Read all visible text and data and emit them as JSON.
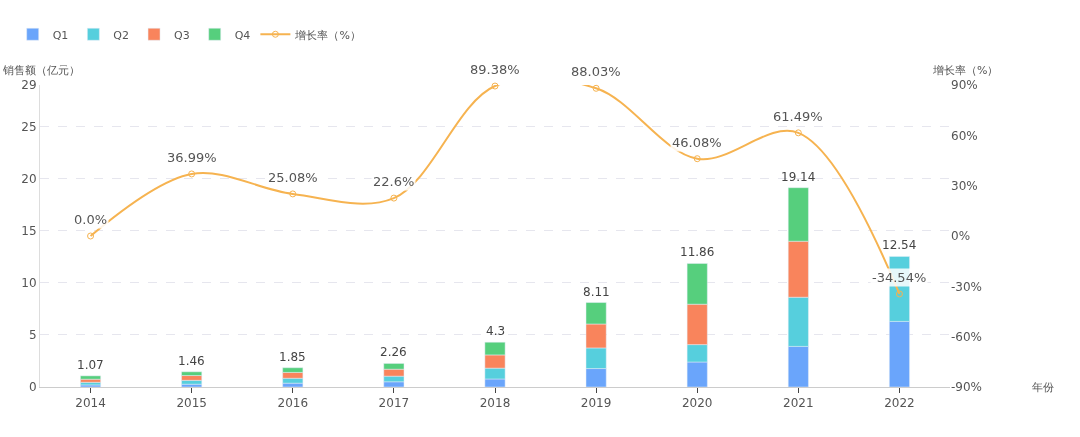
{
  "chart_data": {
    "type": "bar",
    "stacked": true,
    "xlabel": "年份",
    "ylabel": "销售额（亿元）",
    "y2label": "增长率（%）",
    "categories": [
      "2014",
      "2015",
      "2016",
      "2017",
      "2018",
      "2019",
      "2020",
      "2021",
      "2022"
    ],
    "series": [
      {
        "name": "Q1",
        "color": "#6aa5fb",
        "values": [
          0.2,
          0.27,
          0.37,
          0.5,
          0.77,
          1.77,
          2.4,
          3.9,
          6.3
        ]
      },
      {
        "name": "Q2",
        "color": "#56cfdd",
        "values": [
          0.25,
          0.37,
          0.47,
          0.54,
          1.04,
          1.98,
          1.67,
          4.72,
          6.24
        ]
      },
      {
        "name": "Q3",
        "color": "#f9845c",
        "values": [
          0.3,
          0.46,
          0.56,
          0.67,
          1.27,
          2.3,
          3.88,
          5.38,
          null
        ]
      },
      {
        "name": "Q4",
        "color": "#56cf7d",
        "values": [
          0.32,
          0.36,
          0.45,
          0.55,
          1.22,
          2.06,
          3.91,
          5.14,
          null
        ]
      },
      {
        "name": "增长率（%）",
        "type": "line",
        "axis": "y2",
        "color": "#f6b350",
        "marker": "circle",
        "values": [
          0.0,
          36.99,
          25.08,
          22.6,
          89.38,
          88.03,
          46.08,
          61.49,
          -34.54
        ],
        "value_labels": [
          "0.0%",
          "36.99%",
          "25.08%",
          "22.6%",
          "89.38%",
          "88.03%",
          "46.08%",
          "61.49%",
          "-34.54%"
        ]
      }
    ],
    "totals": [
      "1.07",
      "1.46",
      "1.85",
      "2.26",
      "4.3",
      "8.11",
      "11.86",
      "19.14",
      "12.54"
    ],
    "ylim": [
      0,
      29
    ],
    "yticks": [
      0,
      5,
      10,
      15,
      20,
      25,
      29
    ],
    "y2lim": [
      -90,
      90
    ],
    "y2ticks": [
      {
        "value": -90,
        "label": "-90%"
      },
      {
        "value": -60,
        "label": "-60%"
      },
      {
        "value": -30,
        "label": "-30%"
      },
      {
        "value": 0,
        "label": "0%"
      },
      {
        "value": 30,
        "label": "30%"
      },
      {
        "value": 60,
        "label": "60%"
      },
      {
        "value": 90,
        "label": "90%"
      }
    ],
    "grid": "y",
    "legend": "top left"
  }
}
